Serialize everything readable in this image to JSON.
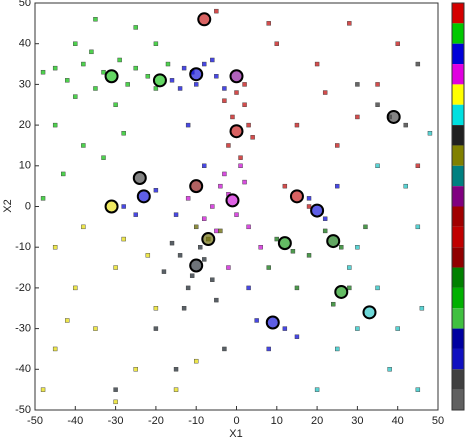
{
  "chart_data": {
    "type": "scatter",
    "xlabel": "X1",
    "ylabel": "X2",
    "xlim": [
      -50,
      50
    ],
    "ylim": [
      -50,
      50
    ],
    "xticks": [
      -50,
      -40,
      -30,
      -20,
      -10,
      0,
      10,
      20,
      30,
      40,
      50
    ],
    "yticks": [
      -50,
      -40,
      -30,
      -20,
      -10,
      0,
      10,
      20,
      30,
      40,
      50
    ],
    "colorbar": [
      "#d40000",
      "#00c800",
      "#0000d8",
      "#e000e0",
      "#ffff00",
      "#00e0e0",
      "#202020",
      "#808000",
      "#008080",
      "#800080",
      "#a00000",
      "#c00000",
      "#900000",
      "#008000",
      "#00b000",
      "#40c040",
      "#0000a0",
      "#1010c0",
      "#404040",
      "#606060"
    ],
    "series": [
      {
        "color": "#22c622",
        "x": [
          -45,
          -42,
          -38,
          -35,
          -33,
          -29,
          -27,
          -25,
          -22,
          -20,
          -17,
          -40,
          -36,
          -48,
          -30,
          -45,
          -38,
          -43,
          -33,
          -28,
          -48,
          -40,
          -25,
          -35,
          -20
        ],
        "y": [
          34,
          31,
          35,
          29,
          33,
          36,
          30,
          34,
          32,
          29,
          35,
          27,
          38,
          33,
          25,
          20,
          15,
          8,
          12,
          18,
          2,
          40,
          44,
          46,
          40
        ]
      },
      {
        "color": "#1a1adc",
        "x": [
          -16,
          -13,
          -10,
          -8,
          -5,
          -3,
          -14,
          -6,
          -11,
          -25,
          -20,
          -28,
          -15,
          5,
          12,
          8,
          3,
          15,
          18,
          22,
          25,
          -12,
          -8
        ],
        "y": [
          31,
          34,
          30,
          35,
          32,
          29,
          29,
          36,
          33,
          -2,
          4,
          0,
          -2,
          -28,
          -30,
          -35,
          -20,
          -32,
          2,
          -3,
          5,
          20,
          10
        ]
      },
      {
        "color": "#c82020",
        "x": [
          0,
          2,
          -1,
          3,
          -2,
          1,
          4,
          -3,
          2,
          10,
          20,
          28,
          35,
          15,
          25,
          40,
          8,
          -5,
          12,
          18,
          30,
          45,
          22
        ],
        "y": [
          28,
          25,
          22,
          20,
          15,
          12,
          17,
          26,
          30,
          40,
          35,
          45,
          30,
          20,
          15,
          40,
          45,
          48,
          5,
          0,
          22,
          10,
          28
        ]
      },
      {
        "color": "#d020d8",
        "x": [
          -4,
          -2,
          -6,
          0,
          -3,
          2,
          -8,
          -5,
          1,
          3,
          -12,
          6,
          -2
        ],
        "y": [
          5,
          3,
          0,
          -2,
          8,
          6,
          -3,
          -6,
          10,
          -5,
          2,
          -10,
          -15
        ]
      },
      {
        "color": "#303840",
        "x": [
          -14,
          -11,
          -8,
          -12,
          -6,
          -16,
          -9,
          -18,
          -13,
          -5,
          -20,
          -30,
          -3,
          -15
        ],
        "y": [
          -12,
          -17,
          -13,
          -20,
          -18,
          -9,
          -10,
          -16,
          -25,
          -23,
          -30,
          -45,
          -35,
          -40
        ]
      },
      {
        "color": "#e8e020",
        "x": [
          -45,
          -40,
          -35,
          -30,
          -25,
          -20,
          -45,
          -38,
          -30,
          -15,
          -48,
          -28,
          -10,
          -22,
          -42
        ],
        "y": [
          -10,
          -20,
          -30,
          -15,
          -40,
          -25,
          -35,
          -5,
          -48,
          -45,
          -45,
          -8,
          -38,
          -12,
          -28
        ]
      },
      {
        "color": "#30c8c8",
        "x": [
          30,
          35,
          40,
          45,
          25,
          38,
          45,
          20,
          30,
          42,
          48,
          35,
          28,
          46
        ],
        "y": [
          -10,
          -20,
          -30,
          -5,
          -35,
          -40,
          -45,
          -45,
          -30,
          5,
          18,
          10,
          -15,
          -25
        ]
      },
      {
        "color": "#404040",
        "x": [
          38,
          35,
          42,
          30,
          45
        ],
        "y": [
          22,
          25,
          20,
          30,
          35
        ]
      },
      {
        "color": "#707010",
        "x": [
          -7,
          -4,
          -10
        ],
        "y": [
          -8,
          -6,
          -5
        ]
      },
      {
        "color": "#208020",
        "x": [
          10,
          14,
          22,
          26,
          28,
          24,
          8,
          18,
          32,
          15
        ],
        "y": [
          -8,
          -11,
          -6,
          -10,
          -20,
          -24,
          -15,
          -12,
          -5,
          -20
        ]
      }
    ],
    "centers": {
      "x": [
        -8,
        -31,
        -19,
        -10,
        0,
        39,
        0,
        -24,
        -10,
        -23,
        15,
        -31,
        -1,
        20,
        -7,
        12,
        24,
        -10,
        26,
        33,
        9
      ],
      "y": [
        46,
        32,
        31,
        32.5,
        32,
        22,
        18.5,
        7,
        5,
        2.5,
        2.5,
        0,
        1.5,
        -1,
        -8,
        -9,
        -8.5,
        -14.5,
        -21,
        -26,
        -28.5
      ],
      "colors": [
        "#c82020",
        "#22c622",
        "#22c622",
        "#1a1adc",
        "#9020a0",
        "#505050",
        "#c82020",
        "#505050",
        "#902020",
        "#1a1adc",
        "#c82020",
        "#e8e020",
        "#d020d8",
        "#1a1adc",
        "#707010",
        "#22a022",
        "#208020",
        "#303840",
        "#22a022",
        "#30c8c8",
        "#1a1adc"
      ]
    }
  }
}
